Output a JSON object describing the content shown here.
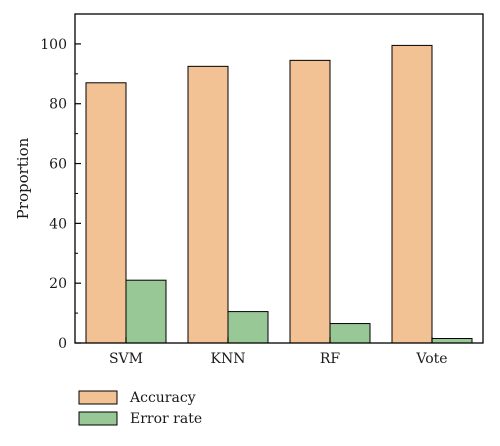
{
  "chart_data": {
    "type": "bar",
    "categories": [
      "SVM",
      "KNN",
      "RF",
      "Vote"
    ],
    "series": [
      {
        "name": "Accuracy",
        "values": [
          87,
          92.5,
          94.5,
          99.5
        ],
        "color": "#F2C194"
      },
      {
        "name": "Error rate",
        "values": [
          21,
          10.5,
          6.5,
          1.5
        ],
        "color": "#98C896"
      }
    ],
    "xlabel": "",
    "ylabel": "Proportion",
    "ylim": [
      0,
      110
    ],
    "yticks": [
      0,
      20,
      40,
      60,
      80,
      100
    ],
    "grid": false,
    "legend_position": "bottom-left"
  }
}
